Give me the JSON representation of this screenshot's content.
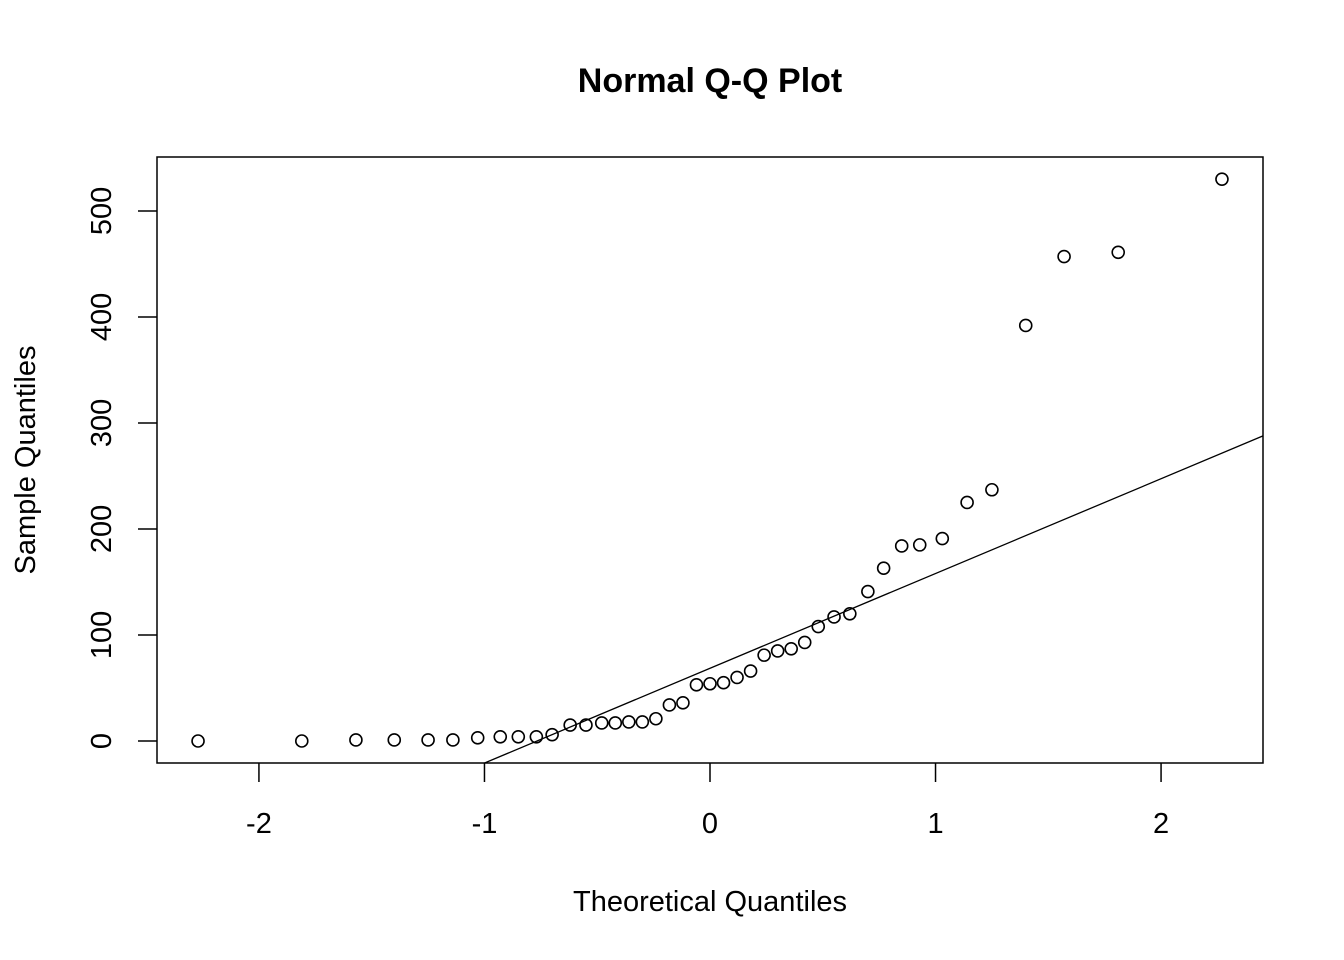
{
  "chart_data": {
    "type": "scatter",
    "title": "Normal Q-Q Plot",
    "xlabel": "Theoretical Quantiles",
    "ylabel": "Sample Quantiles",
    "xlim": [
      -2.452,
      2.452
    ],
    "ylim": [
      -20.75,
      550.9
    ],
    "xticks": [
      -2,
      -1,
      0,
      1,
      2
    ],
    "xtick_labels": [
      "-2",
      "-1",
      "0",
      "1",
      "2"
    ],
    "yticks": [
      0,
      100,
      200,
      300,
      400,
      500
    ],
    "ytick_labels": [
      "0",
      "100",
      "200",
      "300",
      "400",
      "500"
    ],
    "grid": false,
    "x": [
      -2.27,
      -1.81,
      -1.57,
      -1.4,
      -1.25,
      -1.14,
      -1.03,
      -0.93,
      -0.85,
      -0.77,
      -0.7,
      -0.62,
      -0.55,
      -0.48,
      -0.42,
      -0.36,
      -0.3,
      -0.24,
      -0.18,
      -0.12,
      -0.06,
      0,
      0.06,
      0.12,
      0.18,
      0.24,
      0.3,
      0.36,
      0.42,
      0.48,
      0.55,
      0.62,
      0.7,
      0.77,
      0.85,
      0.93,
      1.03,
      1.14,
      1.25,
      1.4,
      1.57,
      1.81,
      2.27
    ],
    "y": [
      0,
      0,
      1,
      1,
      1,
      1,
      3,
      4,
      4,
      4,
      6,
      15,
      15,
      17,
      17,
      18,
      18,
      21,
      34,
      36,
      53,
      54,
      55,
      60,
      66,
      81,
      85,
      87,
      93,
      108,
      117,
      120,
      141,
      163,
      184,
      185,
      191,
      225,
      237,
      392,
      457,
      461,
      530
    ],
    "reference_line": {
      "intercept": 68.6,
      "slope": 89.4
    }
  }
}
